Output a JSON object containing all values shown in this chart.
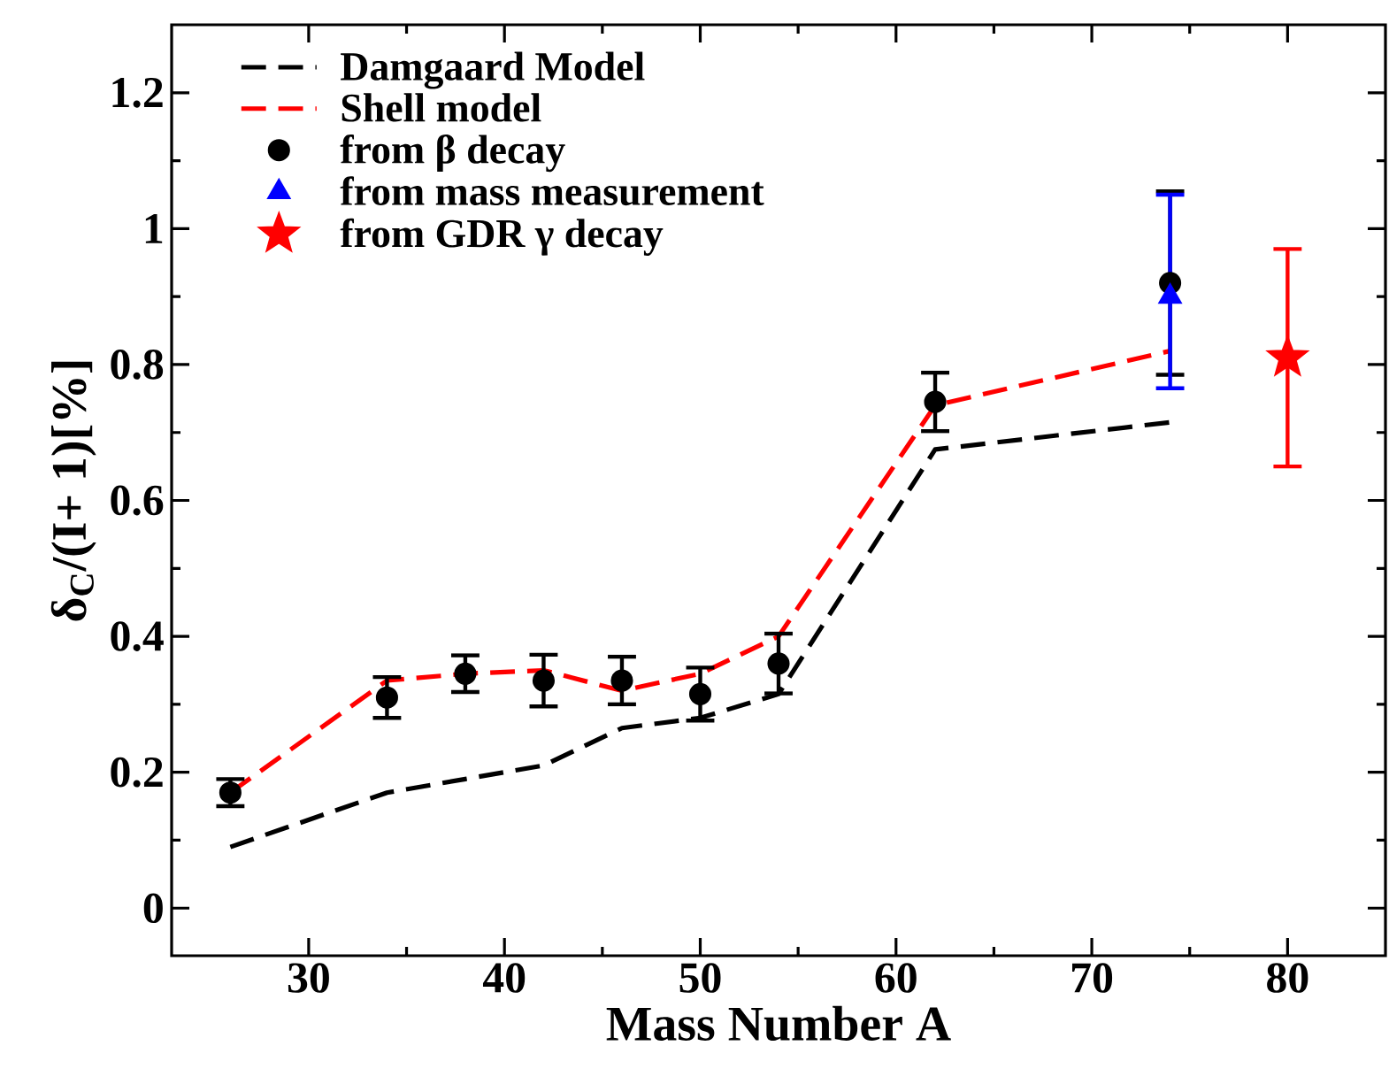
{
  "chart_data": {
    "type": "scatter",
    "xlabel": "Mass Number A",
    "ylabel": "δ$_{C}$/(I+ 1)[%]",
    "xlim": [
      23,
      85
    ],
    "ylim": [
      -0.07,
      1.3
    ],
    "xticks": [
      30,
      40,
      50,
      60,
      70,
      80
    ],
    "yticks": [
      0,
      0.2,
      0.4,
      0.6,
      0.8,
      1,
      1.2
    ],
    "legend": "top left",
    "series": [
      {
        "name": "Damgaard Model",
        "type": "line",
        "color": "#000000",
        "line_style": "dashed",
        "marker": "none",
        "x": [
          26,
          34,
          38,
          42,
          46,
          50,
          54,
          62,
          74
        ],
        "values": [
          0.09,
          0.17,
          0.19,
          0.21,
          0.265,
          0.28,
          0.315,
          0.675,
          0.715
        ]
      },
      {
        "name": "Shell model",
        "type": "line",
        "color": "#ff0000",
        "line_style": "dashed",
        "marker": "none",
        "x": [
          26,
          34,
          38,
          42,
          46,
          50,
          54,
          62,
          74
        ],
        "values": [
          0.17,
          0.335,
          0.345,
          0.35,
          0.32,
          0.345,
          0.4,
          0.74,
          0.82
        ]
      },
      {
        "name": "from β decay",
        "color": "#000000",
        "marker": "circle",
        "x": [
          26,
          34,
          38,
          42,
          46,
          50,
          54,
          62,
          74
        ],
        "values": [
          0.17,
          0.31,
          0.345,
          0.335,
          0.335,
          0.315,
          0.36,
          0.745,
          0.92
        ],
        "errors": [
          0.02,
          0.03,
          0.027,
          0.038,
          0.035,
          0.039,
          0.044,
          0.043,
          0.135
        ]
      },
      {
        "name": "from mass measurement",
        "color": "#0000ff",
        "marker": "triangle",
        "x": [
          74
        ],
        "values": [
          0.9
        ],
        "errors": [
          [
            0.765,
            1.05
          ]
        ]
      },
      {
        "name": "from GDR γ decay",
        "color": "#ff0000",
        "marker": "star",
        "x": [
          80
        ],
        "values": [
          0.81
        ],
        "errors": [
          0.16
        ]
      }
    ]
  }
}
